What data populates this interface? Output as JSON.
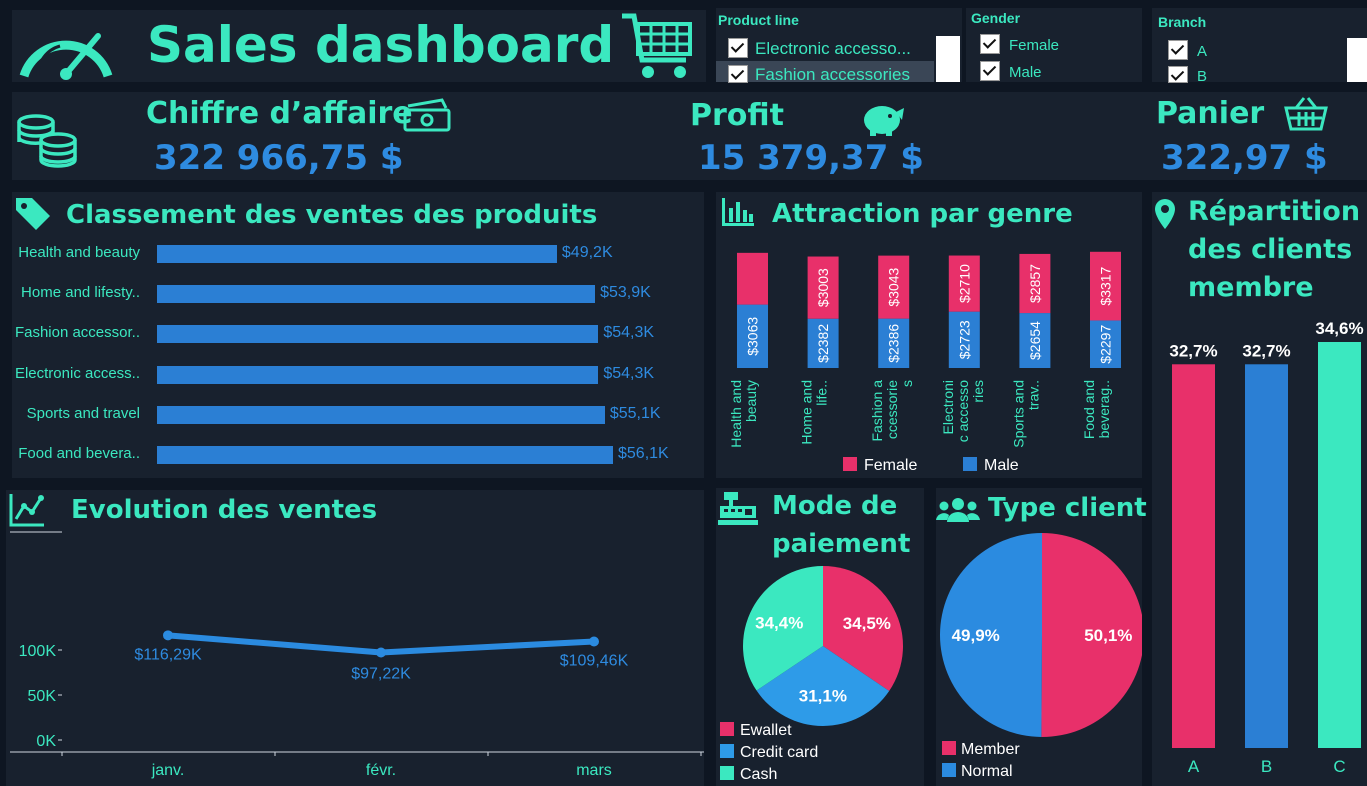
{
  "header": {
    "title": "Sales dashboard",
    "icons": [
      "speedometer-icon",
      "cart-icon"
    ]
  },
  "filters": {
    "product_line": {
      "title": "Product line",
      "items": [
        "Electronic accesso...",
        "Fashion accessories"
      ]
    },
    "gender": {
      "title": "Gender",
      "items": [
        "Female",
        "Male"
      ]
    },
    "branch": {
      "title": "Branch",
      "items": [
        "A",
        "B"
      ]
    }
  },
  "kpis": {
    "ca": {
      "label": "Chiffre d’affaire",
      "value": "322 966,75 $",
      "icon": "money-icon"
    },
    "profit": {
      "label": "Profit",
      "value": "15 379,37 $",
      "icon": "piggy-bank-icon"
    },
    "panier": {
      "label": "Panier",
      "value": "322,97 $",
      "icon": "basket-icon"
    }
  },
  "products": {
    "title": "Classement des ventes des produits",
    "icon": "tag-icon",
    "chart_data": {
      "type": "bar",
      "categories": [
        "Health and beauty",
        "Home and lifesty..",
        "Fashion accessor..",
        "Electronic access..",
        "Sports and travel",
        "Food and bevera.."
      ],
      "values": [
        49.2,
        53.9,
        54.3,
        54.3,
        55.1,
        56.1
      ],
      "labels": [
        "$49,2K",
        "$53,9K",
        "$54,3K",
        "$54,3K",
        "$55,1K",
        "$56,1K"
      ],
      "unit": "K$"
    }
  },
  "gender_chart": {
    "title": "Attraction par genre",
    "icon": "bar-chart-icon",
    "chart_data": {
      "type": "bar",
      "stacked": true,
      "categories": [
        "Health and beauty",
        "Home and life..",
        "Fashion a ccessorie s",
        "Electroni c accesso ries",
        "Sports and trav..",
        "Food and beverag.."
      ],
      "series": [
        {
          "name": "Female",
          "values": [
            2500,
            3003,
            3043,
            2710,
            2857,
            3317
          ],
          "labels": [
            "",
            "$3003",
            "$3043",
            "$2710",
            "$2857",
            "$3317"
          ],
          "color": "#e8306a"
        },
        {
          "name": "Male",
          "values": [
            3063,
            2382,
            2386,
            2723,
            2654,
            2297
          ],
          "labels": [
            "$3063",
            "$2382",
            "$2386",
            "$2723",
            "$2654",
            "$2297"
          ],
          "color": "#2b7fd4"
        }
      ]
    }
  },
  "members_chart": {
    "title_lines": [
      "Répartition",
      "des clients",
      "membre"
    ],
    "icon": "location-pin-icon",
    "chart_data": {
      "type": "bar",
      "categories": [
        "A",
        "B",
        "C"
      ],
      "values": [
        32.7,
        32.7,
        34.6
      ],
      "labels": [
        "32,7%",
        "32,7%",
        "34,6%"
      ],
      "colors": [
        "#e8306a",
        "#2b7fd4",
        "#3be8c0"
      ]
    }
  },
  "evolution_chart": {
    "title": "Evolution des ventes",
    "icon": "line-chart-icon",
    "chart_data": {
      "type": "line",
      "categories": [
        "janv.",
        "févr.",
        "mars"
      ],
      "values": [
        116.29,
        97.22,
        109.46
      ],
      "labels": [
        "$116,29K",
        "$97,22K",
        "$109,46K"
      ],
      "yticks": [
        "0K",
        "50K",
        "100K"
      ],
      "ylim": [
        0,
        130
      ]
    }
  },
  "payment_chart": {
    "title_lines": [
      "Mode de",
      "paiement"
    ],
    "icon": "cash-register-icon",
    "chart_data": {
      "type": "pie",
      "categories": [
        "Ewallet",
        "Credit card",
        "Cash"
      ],
      "values": [
        34.5,
        31.1,
        34.4
      ],
      "labels": [
        "34,5%",
        "31,1%",
        "34,4%"
      ],
      "colors": [
        "#e8306a",
        "#2e9be8",
        "#3be8c0"
      ]
    }
  },
  "client_type_chart": {
    "title": "Type client",
    "icon": "users-icon",
    "chart_data": {
      "type": "pie",
      "categories": [
        "Member",
        "Normal"
      ],
      "values": [
        50.1,
        49.9
      ],
      "labels": [
        "50,1%",
        "49,9%"
      ],
      "colors": [
        "#e8306a",
        "#2b8be0"
      ]
    }
  }
}
